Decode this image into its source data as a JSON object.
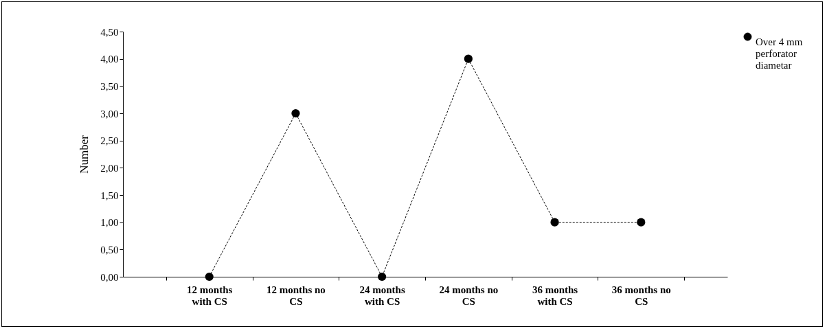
{
  "chart_data": {
    "type": "line",
    "ylabel": "Number",
    "categories": [
      "12 months with CS",
      "12 months no CS",
      "24 months with CS",
      "24 months no CS",
      "36 months with CS",
      "36 months no CS"
    ],
    "series": [
      {
        "name": "Over 4 mm perforator diametar",
        "color": "#000000",
        "values": [
          0,
          3,
          0,
          4,
          1,
          1
        ]
      }
    ],
    "ylim": [
      0,
      4.5
    ],
    "yticks": [
      {
        "value": 0,
        "label": "0,00"
      },
      {
        "value": 0.5,
        "label": "0,50"
      },
      {
        "value": 1,
        "label": "1,00"
      },
      {
        "value": 1.5,
        "label": "1,50"
      },
      {
        "value": 2,
        "label": "2,00"
      },
      {
        "value": 2.5,
        "label": "2,50"
      },
      {
        "value": 3,
        "label": "3,00"
      },
      {
        "value": 3.5,
        "label": "3,50"
      },
      {
        "value": 4,
        "label": "4,00"
      },
      {
        "value": 4.5,
        "label": "4,50"
      }
    ],
    "grid": false,
    "legend": "right",
    "marker": "circle",
    "line_style": "dashed"
  }
}
